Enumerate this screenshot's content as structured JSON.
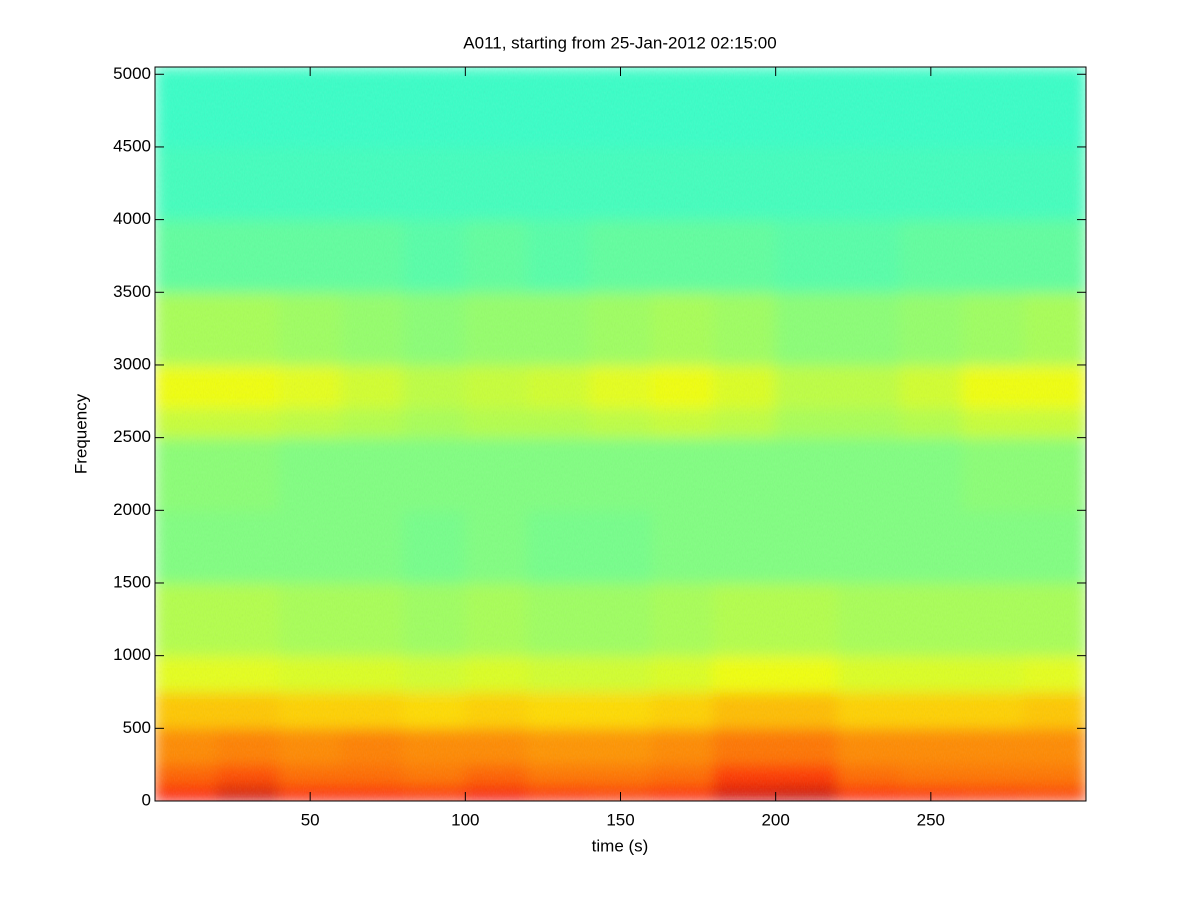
{
  "chart_data": {
    "type": "spectrogram",
    "title": "A011, starting from 25-Jan-2012 02:15:00",
    "xlabel": "time (s)",
    "ylabel": "Frequency",
    "colormap": "jet",
    "xbins": [
      0,
      20,
      40,
      60,
      80,
      100,
      120,
      140,
      160,
      180,
      200,
      220,
      240,
      260,
      280,
      300
    ],
    "ybins": [
      0,
      100,
      250,
      500,
      750,
      1000,
      1500,
      2000,
      2500,
      2700,
      3000,
      3500,
      4000,
      4500,
      5050
    ],
    "values": [
      [
        0.86,
        0.92,
        0.85,
        0.85,
        0.84,
        0.88,
        0.84,
        0.83,
        0.85,
        0.92,
        0.93,
        0.85,
        0.84,
        0.83,
        0.82
      ],
      [
        0.78,
        0.8,
        0.77,
        0.77,
        0.76,
        0.78,
        0.76,
        0.76,
        0.77,
        0.82,
        0.82,
        0.77,
        0.76,
        0.76,
        0.76
      ],
      [
        0.74,
        0.75,
        0.74,
        0.75,
        0.74,
        0.74,
        0.73,
        0.73,
        0.74,
        0.76,
        0.76,
        0.74,
        0.74,
        0.74,
        0.74
      ],
      [
        0.68,
        0.68,
        0.67,
        0.67,
        0.66,
        0.67,
        0.66,
        0.66,
        0.67,
        0.69,
        0.69,
        0.67,
        0.67,
        0.67,
        0.68
      ],
      [
        0.6,
        0.6,
        0.59,
        0.59,
        0.58,
        0.59,
        0.58,
        0.58,
        0.59,
        0.61,
        0.61,
        0.59,
        0.59,
        0.59,
        0.6
      ],
      [
        0.55,
        0.55,
        0.54,
        0.54,
        0.53,
        0.54,
        0.53,
        0.53,
        0.54,
        0.55,
        0.55,
        0.54,
        0.54,
        0.54,
        0.54
      ],
      [
        0.5,
        0.5,
        0.5,
        0.5,
        0.49,
        0.5,
        0.49,
        0.49,
        0.5,
        0.5,
        0.5,
        0.5,
        0.5,
        0.5,
        0.5
      ],
      [
        0.51,
        0.51,
        0.5,
        0.5,
        0.5,
        0.5,
        0.5,
        0.5,
        0.5,
        0.5,
        0.5,
        0.5,
        0.5,
        0.51,
        0.51
      ],
      [
        0.57,
        0.57,
        0.56,
        0.55,
        0.54,
        0.55,
        0.55,
        0.56,
        0.57,
        0.56,
        0.54,
        0.54,
        0.55,
        0.57,
        0.57
      ],
      [
        0.61,
        0.61,
        0.6,
        0.58,
        0.56,
        0.57,
        0.58,
        0.6,
        0.61,
        0.59,
        0.56,
        0.56,
        0.58,
        0.61,
        0.61
      ],
      [
        0.54,
        0.54,
        0.53,
        0.52,
        0.51,
        0.52,
        0.52,
        0.53,
        0.54,
        0.53,
        0.51,
        0.51,
        0.52,
        0.53,
        0.54
      ],
      [
        0.47,
        0.47,
        0.47,
        0.47,
        0.46,
        0.47,
        0.46,
        0.47,
        0.47,
        0.47,
        0.46,
        0.46,
        0.47,
        0.47,
        0.47
      ],
      [
        0.44,
        0.44,
        0.44,
        0.44,
        0.44,
        0.44,
        0.44,
        0.44,
        0.44,
        0.44,
        0.44,
        0.44,
        0.44,
        0.44,
        0.44
      ],
      [
        0.43,
        0.43,
        0.43,
        0.43,
        0.43,
        0.43,
        0.43,
        0.43,
        0.43,
        0.43,
        0.43,
        0.43,
        0.43,
        0.43,
        0.43
      ]
    ],
    "xlim": [
      0,
      300
    ],
    "ylim": [
      0,
      5050
    ],
    "xticks": [
      50,
      100,
      150,
      200,
      250
    ],
    "yticks": [
      0,
      500,
      1000,
      1500,
      2000,
      2500,
      3000,
      3500,
      4000,
      4500,
      5000
    ]
  }
}
